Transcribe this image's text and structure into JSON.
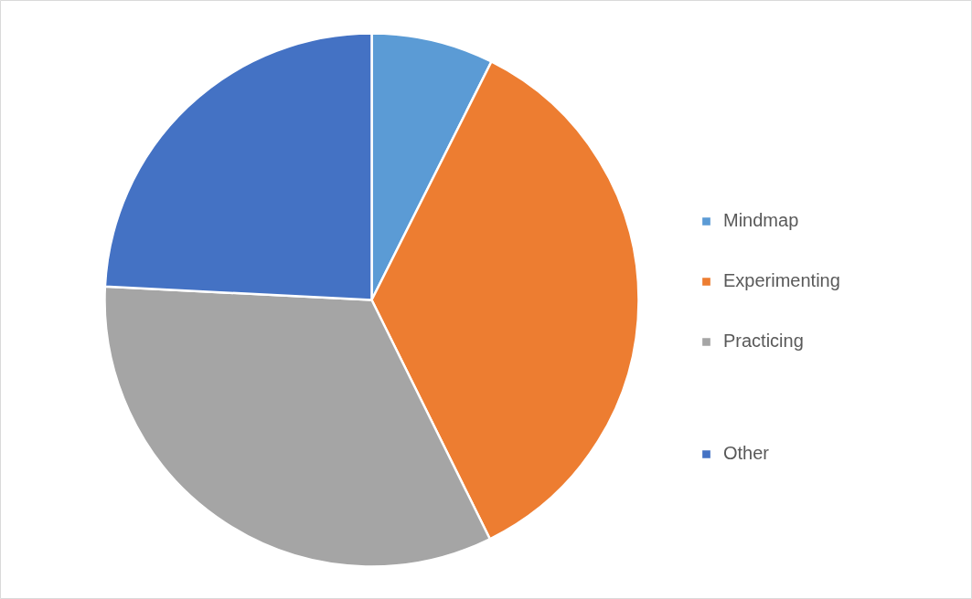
{
  "chart_data": {
    "type": "pie",
    "categories": [
      "Mindmap",
      "Experimenting",
      "Practicing",
      null,
      "Other"
    ],
    "values": [
      7.4,
      35.3,
      33.1,
      0,
      24.2
    ],
    "colors": [
      "#5b9bd5",
      "#ed7d31",
      "#a5a5a5",
      "#00b050",
      "#4472c4"
    ],
    "legend": "right"
  }
}
